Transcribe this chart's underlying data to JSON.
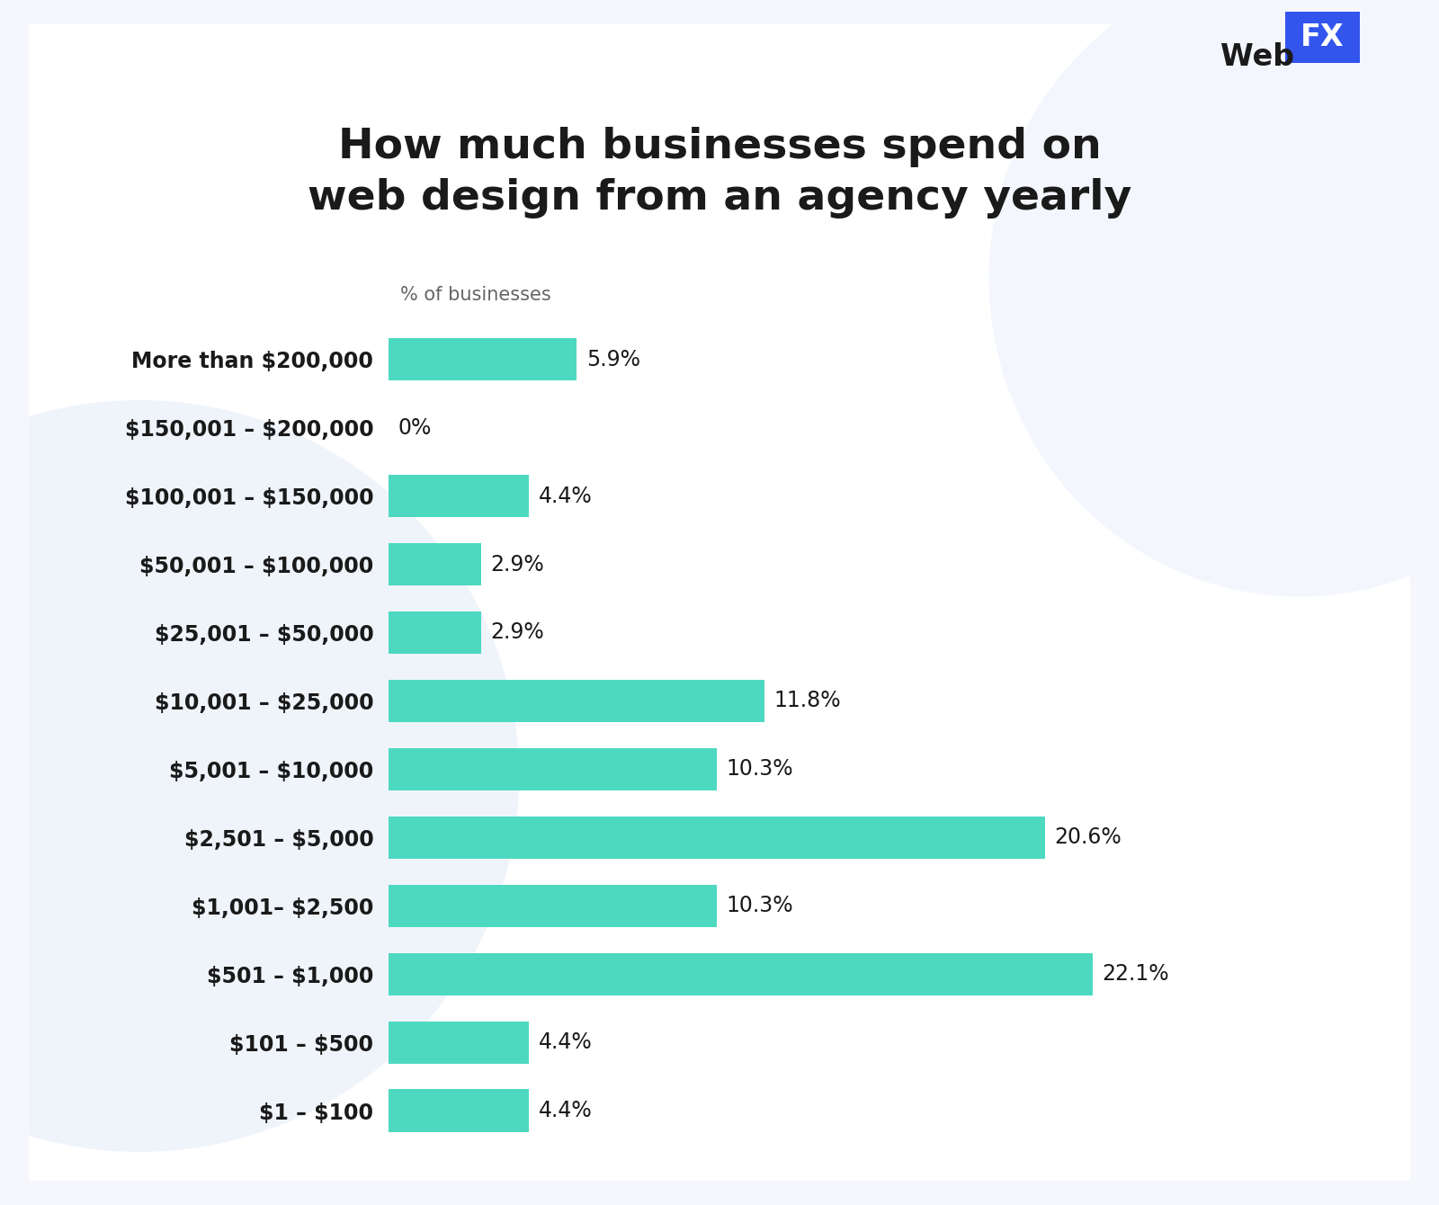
{
  "title_line1": "How much businesses spend on",
  "title_line2": "web design from an agency yearly",
  "xlabel": "% of businesses",
  "categories": [
    "$1 – $100",
    "$101 – $500",
    "$501 – $1,000",
    "$1,001– $2,500",
    "$2,501 – $5,000",
    "$5,001 – $10,000",
    "$10,001 – $25,000",
    "$25,001 – $50,000",
    "$50,001 – $100,000",
    "$100,001 – $150,000",
    "$150,001 – $200,000",
    "More than $200,000"
  ],
  "values": [
    4.4,
    4.4,
    22.1,
    10.3,
    20.6,
    10.3,
    11.8,
    2.9,
    2.9,
    4.4,
    0.0,
    5.9
  ],
  "bar_color": "#4DD9C0",
  "background_color": "#f5f7fc",
  "card_color": "#ffffff",
  "title_color": "#1a1a1a",
  "label_color": "#1a1a1a",
  "value_color": "#1a1a1a",
  "xlabel_color": "#666666",
  "webfx_box_color": "#3355EE",
  "webfx_box_text_color": "#ffffff",
  "title_fontsize": 34,
  "bar_label_fontsize": 17,
  "value_label_fontsize": 17,
  "xlabel_fontsize": 15,
  "logo_fontsize": 24
}
